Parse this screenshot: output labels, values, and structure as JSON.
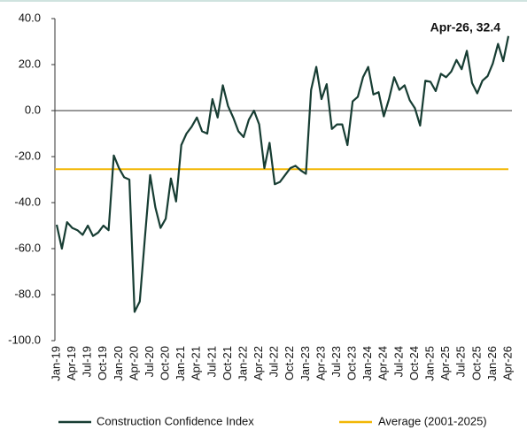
{
  "chart_data": {
    "type": "line",
    "annotation": "Apr-26, 32.4",
    "categories": [
      "Jan-19",
      null,
      null,
      "Apr-19",
      null,
      null,
      "Jul-19",
      null,
      null,
      "Oct-19",
      null,
      null,
      "Jan-20",
      null,
      null,
      "Apr-20",
      null,
      null,
      "Jul-20",
      null,
      null,
      "Oct-20",
      null,
      null,
      "Jan-21",
      null,
      null,
      "Apr-21",
      null,
      null,
      "Jul-21",
      null,
      null,
      "Oct-21",
      null,
      null,
      "Jan-22",
      null,
      null,
      "Apr-22",
      null,
      null,
      "Jul-22",
      null,
      null,
      "Oct-22",
      null,
      null,
      "Jan-23",
      null,
      null,
      "Apr-23",
      null,
      null,
      "Jul-23",
      null,
      null,
      "Oct-23",
      null,
      null,
      "Jan-24",
      null,
      null,
      "Apr-24",
      null,
      null,
      "Jul-24",
      null,
      null,
      "Oct-24",
      null,
      null,
      "Jan-25",
      null,
      null,
      "Apr-25",
      null,
      null,
      "Jul-25",
      null,
      null,
      "Oct-25",
      null,
      null,
      "Jan-26",
      null,
      null,
      "Apr-26"
    ],
    "series": [
      {
        "name": "Construction Confidence Index",
        "color": "#173d33",
        "values": [
          -49.6,
          -60,
          -48.5,
          -51,
          -52,
          -54,
          -50,
          -54.5,
          -53,
          -50,
          -52,
          -19.5,
          -25,
          -29,
          -30,
          -87.5,
          -83,
          -55,
          -28,
          -42,
          -51,
          -47,
          -29.5,
          -39.5,
          -15,
          -10,
          -7,
          -3,
          -9,
          -10,
          5,
          -3,
          11,
          2,
          -3,
          -9,
          -11.5,
          -4,
          0,
          -6,
          -25,
          -14,
          -32,
          -31,
          -28,
          -25,
          -24,
          -26,
          -27.5,
          9,
          19,
          5,
          11.5,
          -8,
          -6,
          -6,
          -15,
          4,
          6,
          14.5,
          19,
          7,
          8,
          -2.5,
          5,
          14.5,
          9,
          11,
          4.5,
          1,
          -6.5,
          13,
          12.5,
          8.5,
          16,
          14.5,
          17,
          22,
          18,
          26,
          12,
          7.5,
          13,
          15,
          20.5,
          29,
          21.5,
          32.4
        ]
      }
    ],
    "average": {
      "name": "Average (2001-2025)",
      "value": -25.5,
      "color": "#f2b705"
    },
    "ylim": [
      -100,
      40
    ],
    "yticks": [
      {
        "value": -100,
        "label": "-100.0"
      },
      {
        "value": -80,
        "label": "-80.0"
      },
      {
        "value": -60,
        "label": "-60.0"
      },
      {
        "value": -40,
        "label": "-40.0"
      },
      {
        "value": -20,
        "label": "-20.0"
      },
      {
        "value": 0,
        "label": "0.0"
      },
      {
        "value": 20,
        "label": "20.0"
      },
      {
        "value": 40,
        "label": "40.0"
      }
    ]
  }
}
